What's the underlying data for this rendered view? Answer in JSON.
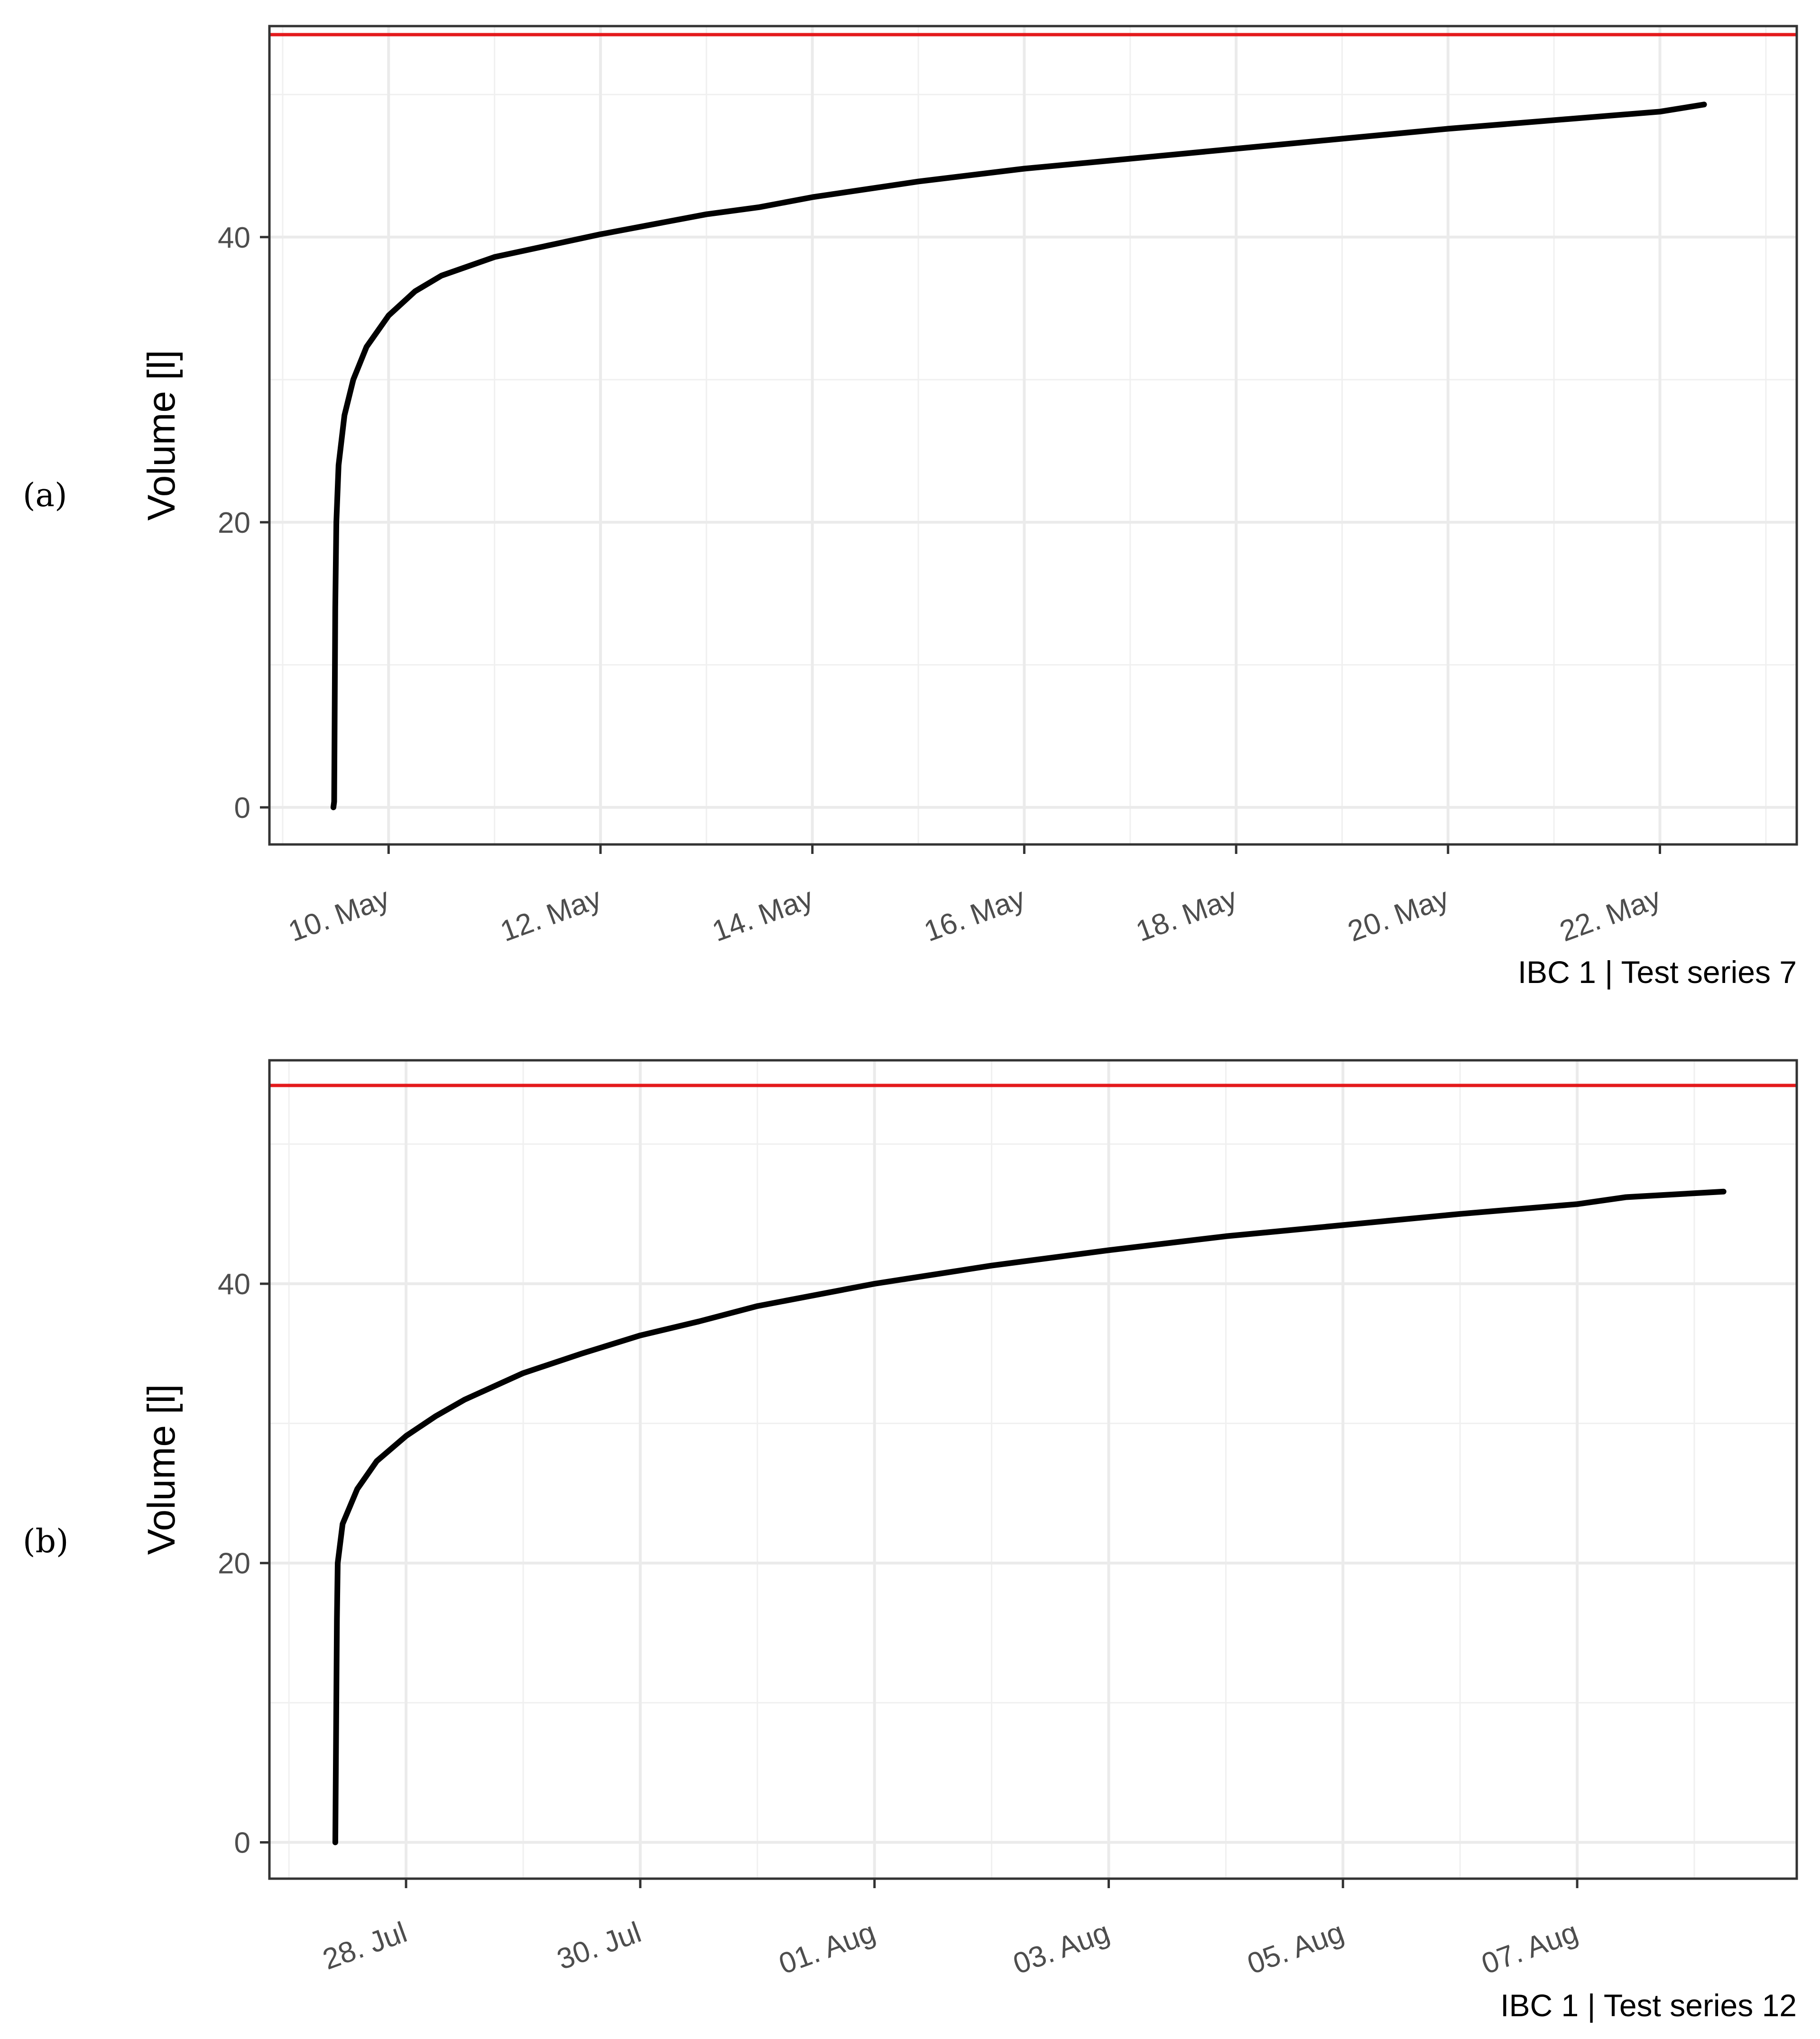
{
  "chart_data": [
    {
      "panel": "(a)",
      "type": "line",
      "ylabel": "Volume [l]",
      "caption": "IBC 1 | Test series 7",
      "x_kind": "date",
      "x_ticks": [
        {
          "date": "2023-05-10",
          "label": "10. May"
        },
        {
          "date": "2023-05-12",
          "label": "12. May"
        },
        {
          "date": "2023-05-14",
          "label": "14. May"
        },
        {
          "date": "2023-05-16",
          "label": "16. May"
        },
        {
          "date": "2023-05-18",
          "label": "18. May"
        },
        {
          "date": "2023-05-20",
          "label": "20. May"
        },
        {
          "date": "2023-05-22",
          "label": "22. May"
        }
      ],
      "xlim": [
        "2023-05-08T21:00",
        "2023-05-23T07:00"
      ],
      "y_ticks": [
        0,
        20,
        40
      ],
      "ylim": [
        -2.6,
        54.8
      ],
      "grid": true,
      "reference_line": {
        "y": 54.2,
        "color": "#e41a1c"
      },
      "series": [
        {
          "color": "#000000",
          "points": [
            [
              "2023-05-09T11:30",
              0.0
            ],
            [
              "2023-05-09T11:40",
              0.4
            ],
            [
              "2023-05-09T11:45",
              5
            ],
            [
              "2023-05-09T11:55",
              14
            ],
            [
              "2023-05-09T12:10",
              20
            ],
            [
              "2023-05-09T12:40",
              24
            ],
            [
              "2023-05-09T14:00",
              27.5
            ],
            [
              "2023-05-09T16:00",
              30
            ],
            [
              "2023-05-09T19:00",
              32.3
            ],
            [
              "2023-05-10T00:00",
              34.5
            ],
            [
              "2023-05-10T06:00",
              36.2
            ],
            [
              "2023-05-10T12:00",
              37.3
            ],
            [
              "2023-05-11T00:00",
              38.6
            ],
            [
              "2023-05-11T12:00",
              39.4
            ],
            [
              "2023-05-12T00:00",
              40.2
            ],
            [
              "2023-05-12T12:00",
              40.9
            ],
            [
              "2023-05-13T00:00",
              41.6
            ],
            [
              "2023-05-13T12:00",
              42.1
            ],
            [
              "2023-05-14T00:00",
              42.8
            ],
            [
              "2023-05-15T00:00",
              43.9
            ],
            [
              "2023-05-16T00:00",
              44.8
            ],
            [
              "2023-05-17T00:00",
              45.5
            ],
            [
              "2023-05-18T00:00",
              46.2
            ],
            [
              "2023-05-19T00:00",
              46.9
            ],
            [
              "2023-05-20T00:00",
              47.6
            ],
            [
              "2023-05-21T00:00",
              48.2
            ],
            [
              "2023-05-22T00:00",
              48.8
            ],
            [
              "2023-05-22T10:00",
              49.3
            ]
          ]
        }
      ]
    },
    {
      "panel": "(b)",
      "type": "line",
      "ylabel": "Volume [l]",
      "caption": "IBC 1 | Test series 12",
      "x_kind": "date",
      "x_ticks": [
        {
          "date": "2023-07-28",
          "label": "28. Jul"
        },
        {
          "date": "2023-07-30",
          "label": "30. Jul"
        },
        {
          "date": "2023-08-01",
          "label": "01. Aug"
        },
        {
          "date": "2023-08-03",
          "label": "03. Aug"
        },
        {
          "date": "2023-08-05",
          "label": "05. Aug"
        },
        {
          "date": "2023-08-07",
          "label": "07. Aug"
        }
      ],
      "xlim": [
        "2023-07-26T20:00",
        "2023-08-08T21:00"
      ],
      "y_ticks": [
        0,
        20,
        40
      ],
      "ylim": [
        -2.6,
        56.0
      ],
      "grid": true,
      "reference_line": {
        "y": 54.2,
        "color": "#e41a1c"
      },
      "series": [
        {
          "color": "#000000",
          "points": [
            [
              "2023-07-27T09:30",
              0.0
            ],
            [
              "2023-07-27T09:40",
              8
            ],
            [
              "2023-07-27T09:50",
              16
            ],
            [
              "2023-07-27T10:00",
              20
            ],
            [
              "2023-07-27T11:00",
              22.8
            ],
            [
              "2023-07-27T14:00",
              25.3
            ],
            [
              "2023-07-27T18:00",
              27.3
            ],
            [
              "2023-07-28T00:00",
              29.1
            ],
            [
              "2023-07-28T06:00",
              30.5
            ],
            [
              "2023-07-28T12:00",
              31.7
            ],
            [
              "2023-07-29T00:00",
              33.6
            ],
            [
              "2023-07-29T12:00",
              35.0
            ],
            [
              "2023-07-30T00:00",
              36.3
            ],
            [
              "2023-07-30T12:00",
              37.3
            ],
            [
              "2023-07-31T00:00",
              38.4
            ],
            [
              "2023-08-01T00:00",
              40.0
            ],
            [
              "2023-08-02T00:00",
              41.3
            ],
            [
              "2023-08-03T00:00",
              42.4
            ],
            [
              "2023-08-04T00:00",
              43.4
            ],
            [
              "2023-08-05T00:00",
              44.2
            ],
            [
              "2023-08-06T00:00",
              45.0
            ],
            [
              "2023-08-07T00:00",
              45.7
            ],
            [
              "2023-08-07T10:00",
              46.2
            ],
            [
              "2023-08-08T06:00",
              46.6
            ]
          ]
        }
      ]
    }
  ]
}
